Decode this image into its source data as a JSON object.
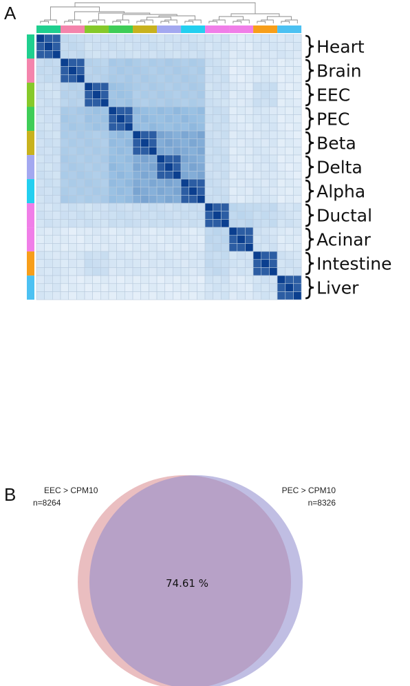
{
  "panels": {
    "a": "A",
    "b": "B"
  },
  "chart_data": [
    {
      "type": "heatmap",
      "title": "",
      "groups": [
        {
          "label": "Heart",
          "n": 3,
          "color": "#1fcf8f"
        },
        {
          "label": "Brain",
          "n": 3,
          "color": "#f484ac"
        },
        {
          "label": "EEC",
          "n": 3,
          "color": "#86c92a"
        },
        {
          "label": "PEC",
          "n": 3,
          "color": "#3fcd57"
        },
        {
          "label": "Beta",
          "n": 3,
          "color": "#c8b21d"
        },
        {
          "label": "Delta",
          "n": 3,
          "color": "#a3a8f0"
        },
        {
          "label": "Alpha",
          "n": 3,
          "color": "#23cff0"
        },
        {
          "label": "Ductal",
          "n": 3,
          "color": "#f07ee8"
        },
        {
          "label": "Acinar",
          "n": 3,
          "color": "#f07ee8"
        },
        {
          "label": "Intestine",
          "n": 3,
          "color": "#f79e1a"
        },
        {
          "label": "Liver",
          "n": 3,
          "color": "#4cc1f2"
        }
      ],
      "group_similarity": [
        [
          1.0,
          0.25,
          0.2,
          0.2,
          0.2,
          0.2,
          0.2,
          0.18,
          0.12,
          0.15,
          0.15
        ],
        [
          0.25,
          1.0,
          0.32,
          0.4,
          0.38,
          0.38,
          0.38,
          0.2,
          0.1,
          0.14,
          0.1
        ],
        [
          0.2,
          0.32,
          1.0,
          0.45,
          0.38,
          0.38,
          0.38,
          0.2,
          0.12,
          0.22,
          0.1
        ],
        [
          0.2,
          0.4,
          0.45,
          1.0,
          0.5,
          0.5,
          0.5,
          0.22,
          0.12,
          0.15,
          0.1
        ],
        [
          0.2,
          0.38,
          0.38,
          0.5,
          1.0,
          0.58,
          0.58,
          0.22,
          0.12,
          0.15,
          0.1
        ],
        [
          0.2,
          0.38,
          0.38,
          0.5,
          0.58,
          1.0,
          0.58,
          0.22,
          0.12,
          0.15,
          0.1
        ],
        [
          0.2,
          0.38,
          0.38,
          0.5,
          0.58,
          0.58,
          1.0,
          0.22,
          0.12,
          0.15,
          0.1
        ],
        [
          0.18,
          0.2,
          0.2,
          0.22,
          0.22,
          0.22,
          0.22,
          1.0,
          0.28,
          0.25,
          0.18
        ],
        [
          0.12,
          0.1,
          0.12,
          0.12,
          0.12,
          0.12,
          0.12,
          0.28,
          1.0,
          0.18,
          0.12
        ],
        [
          0.15,
          0.14,
          0.22,
          0.15,
          0.15,
          0.15,
          0.15,
          0.25,
          0.18,
          1.0,
          0.18
        ],
        [
          0.15,
          0.1,
          0.1,
          0.1,
          0.1,
          0.1,
          0.1,
          0.18,
          0.12,
          0.18,
          1.0
        ]
      ],
      "color_low": "#f3f8fd",
      "color_high": "#0b3f8f",
      "dendrogram": "hierarchical clustering shown above columns"
    },
    {
      "type": "venn",
      "sets": [
        {
          "label": "EEC > CPM10",
          "count": "n=8264",
          "color": "#d9888c"
        },
        {
          "label": "PEC > CPM10",
          "count": "n=8326",
          "color": "#8b88c9"
        }
      ],
      "overlap_label": "74.61 %",
      "overlap_percent": 74.61
    }
  ]
}
